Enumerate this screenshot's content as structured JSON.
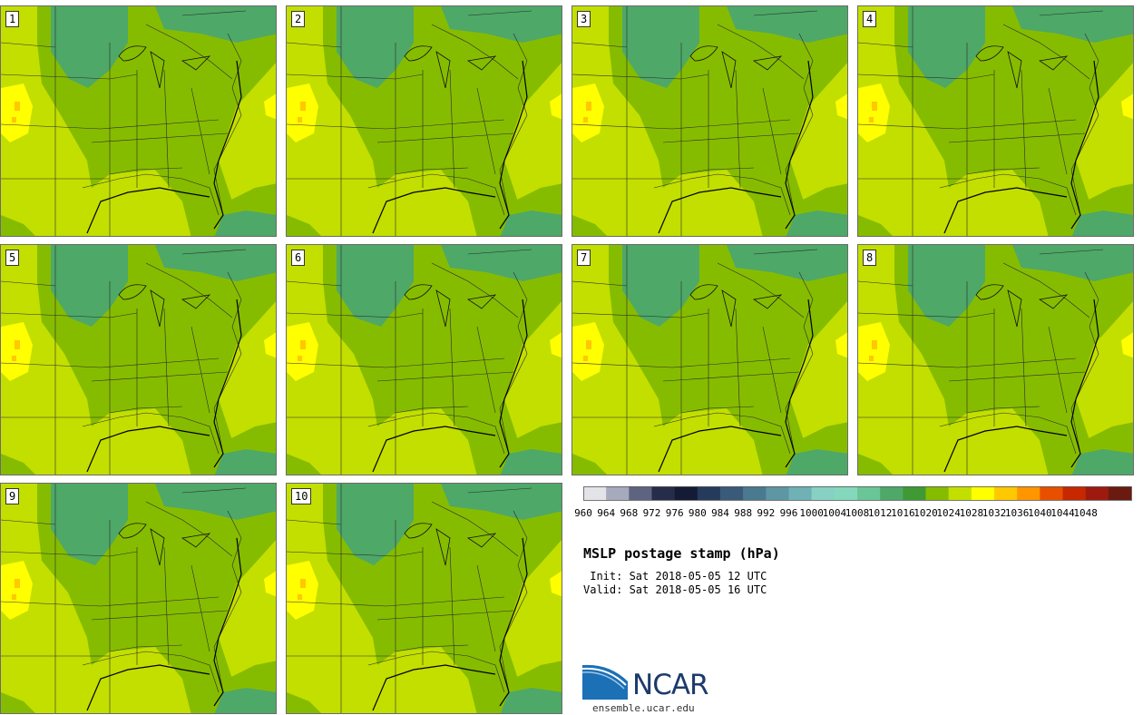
{
  "title": "MSLP postage stamp (hPa)",
  "init_line": " Init: Sat 2018-05-05 12 UTC",
  "valid_line": "Valid: Sat 2018-05-05 16 UTC",
  "logo_text": "NCAR",
  "site": "ensemble.ucar.edu",
  "members": [
    {
      "label": "1"
    },
    {
      "label": "2"
    },
    {
      "label": "3"
    },
    {
      "label": "4"
    },
    {
      "label": "5"
    },
    {
      "label": "6"
    },
    {
      "label": "7"
    },
    {
      "label": "8"
    },
    {
      "label": "9"
    },
    {
      "label": "10"
    }
  ],
  "colorbar": {
    "units": "hPa",
    "levels": [
      "960",
      "964",
      "968",
      "972",
      "976",
      "980",
      "984",
      "988",
      "992",
      "996",
      "1000",
      "1004",
      "1008",
      "1012",
      "1016",
      "1020",
      "1024",
      "1028",
      "1032",
      "1036",
      "1040",
      "1044",
      "1048"
    ],
    "colors": [
      "#e3e4e8",
      "#a7a9bd",
      "#5e6480",
      "#252d4a",
      "#141b35",
      "#263b5c",
      "#3a5a79",
      "#4a7a90",
      "#5e96a4",
      "#6fb1b5",
      "#86d1c4",
      "#84d8bb",
      "#6ac597",
      "#4ea868",
      "#3f9a36",
      "#86bc00",
      "#c2df00",
      "#ffff00",
      "#ffc800",
      "#ff9600",
      "#e85000",
      "#c82800",
      "#9e1a0e",
      "#6b1a10"
    ]
  },
  "colors": {
    "high_1020": "#c2df00",
    "mid_1016": "#86bc00",
    "low_1012": "#4ea868",
    "high_1024": "#ffff00"
  }
}
